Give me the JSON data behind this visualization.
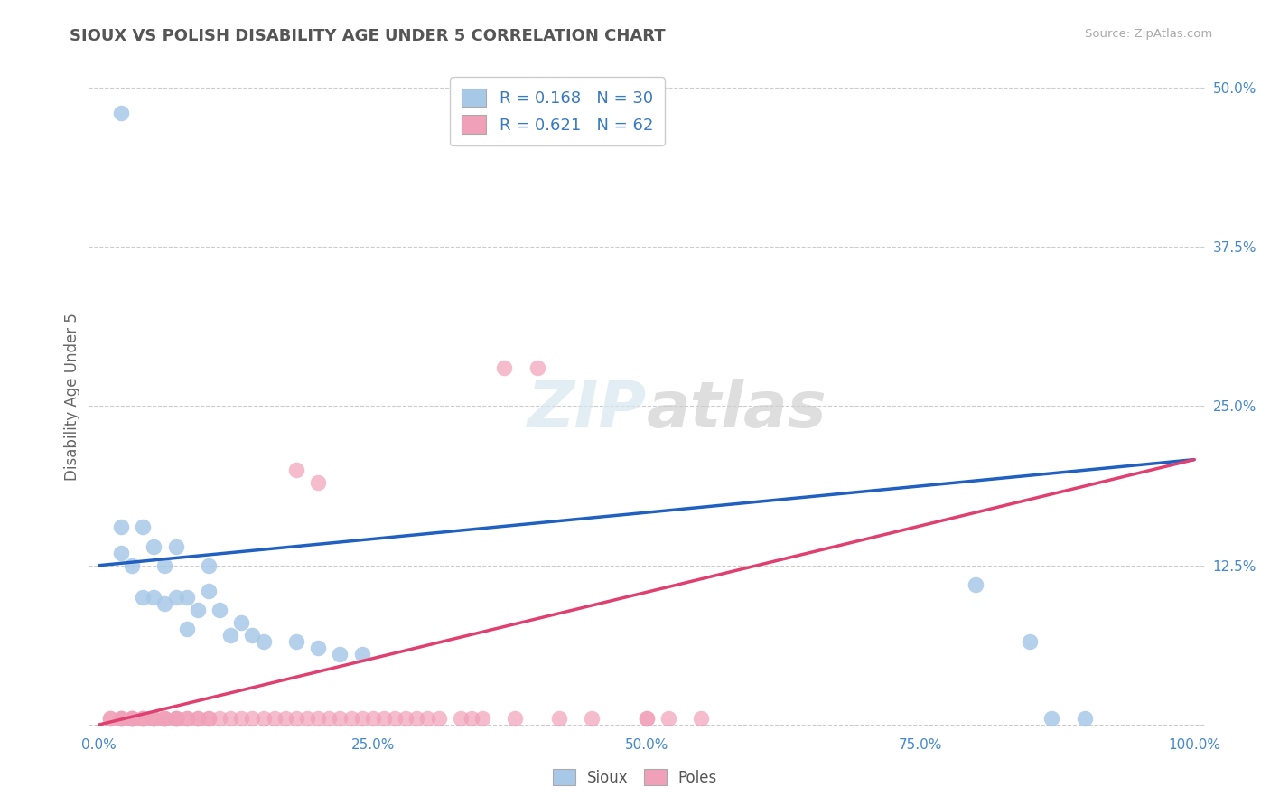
{
  "title": "SIOUX VS POLISH DISABILITY AGE UNDER 5 CORRELATION CHART",
  "source": "Source: ZipAtlas.com",
  "ylabel": "Disability Age Under 5",
  "xlim": [
    -0.01,
    1.01
  ],
  "ylim": [
    -0.005,
    0.52
  ],
  "ytick_positions": [
    0.0,
    0.125,
    0.25,
    0.375,
    0.5
  ],
  "ytick_labels": [
    "",
    "12.5%",
    "25.0%",
    "37.5%",
    "50.0%"
  ],
  "xtick_positions": [
    0.0,
    0.25,
    0.5,
    0.75,
    1.0
  ],
  "xtick_labels": [
    "0.0%",
    "25.0%",
    "50.0%",
    "75.0%",
    "100.0%"
  ],
  "legend_label1": "Sioux",
  "legend_label2": "Poles",
  "R1": 0.168,
  "N1": 30,
  "R2": 0.621,
  "N2": 62,
  "sioux_color": "#a8c8e8",
  "poles_color": "#f0a0b8",
  "sioux_line_color": "#2060c0",
  "poles_line_color": "#e04070",
  "sioux_line_start_y": 0.125,
  "sioux_line_end_y": 0.208,
  "poles_line_start_y": 0.0,
  "poles_line_end_y": 0.208,
  "background_color": "#ffffff",
  "sioux_x": [
    0.02,
    0.02,
    0.03,
    0.04,
    0.04,
    0.05,
    0.05,
    0.06,
    0.06,
    0.07,
    0.07,
    0.08,
    0.08,
    0.09,
    0.1,
    0.1,
    0.11,
    0.12,
    0.13,
    0.14,
    0.15,
    0.18,
    0.2,
    0.22,
    0.24,
    0.8,
    0.85,
    0.87,
    0.9,
    0.02
  ],
  "sioux_y": [
    0.155,
    0.135,
    0.125,
    0.155,
    0.1,
    0.14,
    0.1,
    0.125,
    0.095,
    0.14,
    0.1,
    0.1,
    0.075,
    0.09,
    0.125,
    0.105,
    0.09,
    0.07,
    0.08,
    0.07,
    0.065,
    0.065,
    0.06,
    0.055,
    0.055,
    0.11,
    0.065,
    0.005,
    0.005,
    0.48
  ],
  "poles_x": [
    0.01,
    0.01,
    0.02,
    0.02,
    0.02,
    0.03,
    0.03,
    0.03,
    0.03,
    0.04,
    0.04,
    0.04,
    0.05,
    0.05,
    0.05,
    0.06,
    0.06,
    0.06,
    0.07,
    0.07,
    0.07,
    0.08,
    0.08,
    0.09,
    0.09,
    0.1,
    0.1,
    0.11,
    0.12,
    0.13,
    0.14,
    0.15,
    0.16,
    0.17,
    0.18,
    0.19,
    0.2,
    0.21,
    0.22,
    0.23,
    0.24,
    0.25,
    0.26,
    0.27,
    0.28,
    0.29,
    0.3,
    0.31,
    0.33,
    0.34,
    0.35,
    0.38,
    0.42,
    0.45,
    0.5,
    0.52,
    0.18,
    0.2,
    0.37,
    0.4,
    0.5,
    0.55
  ],
  "poles_y": [
    0.005,
    0.005,
    0.005,
    0.005,
    0.005,
    0.005,
    0.005,
    0.005,
    0.005,
    0.005,
    0.005,
    0.005,
    0.005,
    0.005,
    0.005,
    0.005,
    0.005,
    0.005,
    0.005,
    0.005,
    0.005,
    0.005,
    0.005,
    0.005,
    0.005,
    0.005,
    0.005,
    0.005,
    0.005,
    0.005,
    0.005,
    0.005,
    0.005,
    0.005,
    0.005,
    0.005,
    0.005,
    0.005,
    0.005,
    0.005,
    0.005,
    0.005,
    0.005,
    0.005,
    0.005,
    0.005,
    0.005,
    0.005,
    0.005,
    0.005,
    0.005,
    0.005,
    0.005,
    0.005,
    0.005,
    0.005,
    0.2,
    0.19,
    0.28,
    0.28,
    0.005,
    0.005
  ]
}
